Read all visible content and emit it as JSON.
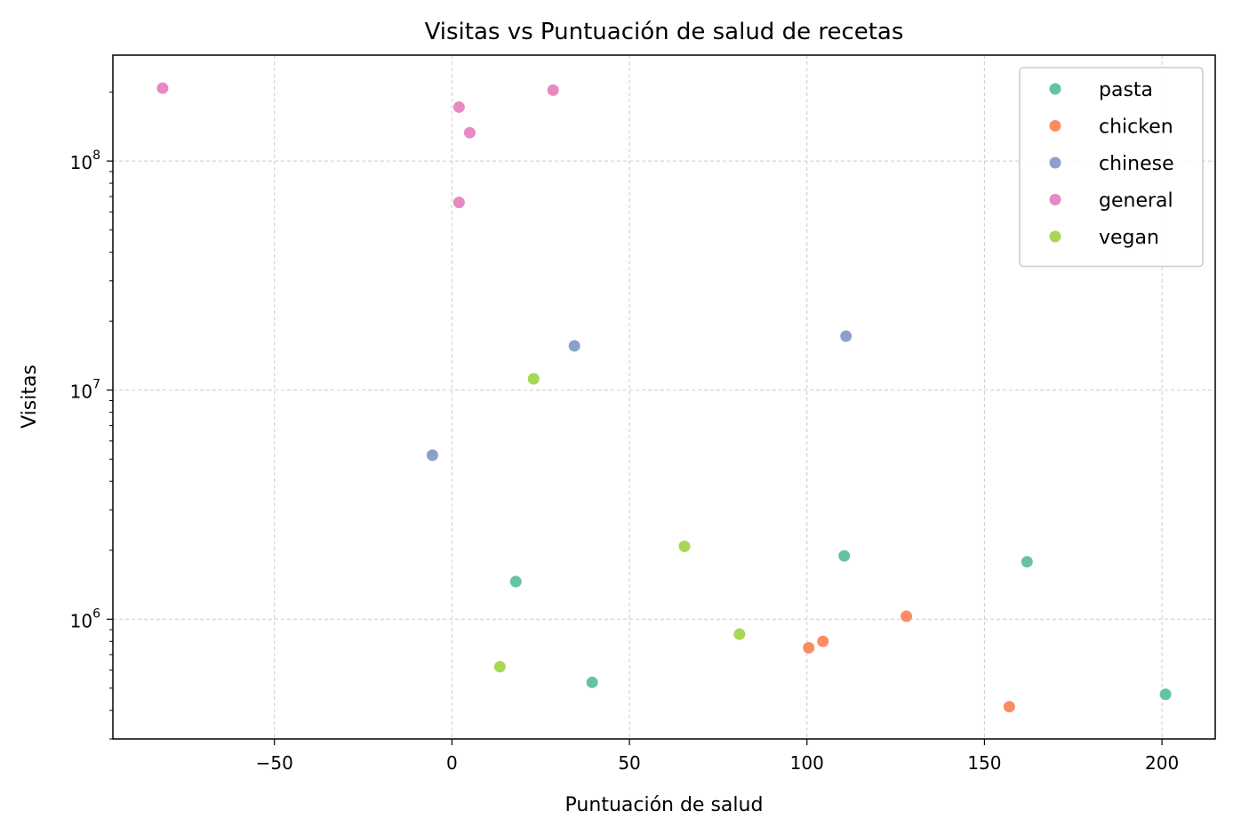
{
  "chart_data": {
    "type": "scatter",
    "title": "Visitas vs Puntuación de salud de recetas",
    "xlabel": "Puntuación de salud",
    "ylabel": "Visitas",
    "xlim": [
      -95.5,
      215
    ],
    "ylim": [
      300000,
      290000000
    ],
    "y_scale": "log",
    "grid": true,
    "legend_position": "top-right",
    "x_ticks": [
      -50,
      0,
      50,
      100,
      150,
      200
    ],
    "x_tick_labels": [
      "−50",
      "0",
      "50",
      "100",
      "150",
      "200"
    ],
    "y_ticks": [
      1000000,
      10000000,
      100000000
    ],
    "y_tick_labels": [
      {
        "base": "10",
        "exp": "6"
      },
      {
        "base": "10",
        "exp": "7"
      },
      {
        "base": "10",
        "exp": "8"
      }
    ],
    "series": [
      {
        "name": "pasta",
        "color": "#66c2a5",
        "points": [
          [
            18,
            1460000
          ],
          [
            39.5,
            530000
          ],
          [
            110.5,
            1890000
          ],
          [
            162,
            1780000
          ],
          [
            201,
            470000
          ]
        ]
      },
      {
        "name": "chicken",
        "color": "#fc8d62",
        "points": [
          [
            100.5,
            750000
          ],
          [
            104.5,
            800000
          ],
          [
            128,
            1030000
          ],
          [
            157,
            415000
          ]
        ]
      },
      {
        "name": "chinese",
        "color": "#8da0cb",
        "points": [
          [
            -5.5,
            5200000
          ],
          [
            34.5,
            15600000
          ],
          [
            111,
            17200000
          ]
        ]
      },
      {
        "name": "general",
        "color": "#e78ac3",
        "points": [
          [
            -81.5,
            208000000
          ],
          [
            2,
            172000000
          ],
          [
            5,
            133000000
          ],
          [
            2,
            66000000
          ],
          [
            28.5,
            204000000
          ]
        ]
      },
      {
        "name": "vegan",
        "color": "#a6d854",
        "points": [
          [
            23,
            11200000
          ],
          [
            13.5,
            620000
          ],
          [
            65.5,
            2080000
          ],
          [
            81,
            860000
          ]
        ]
      }
    ]
  }
}
